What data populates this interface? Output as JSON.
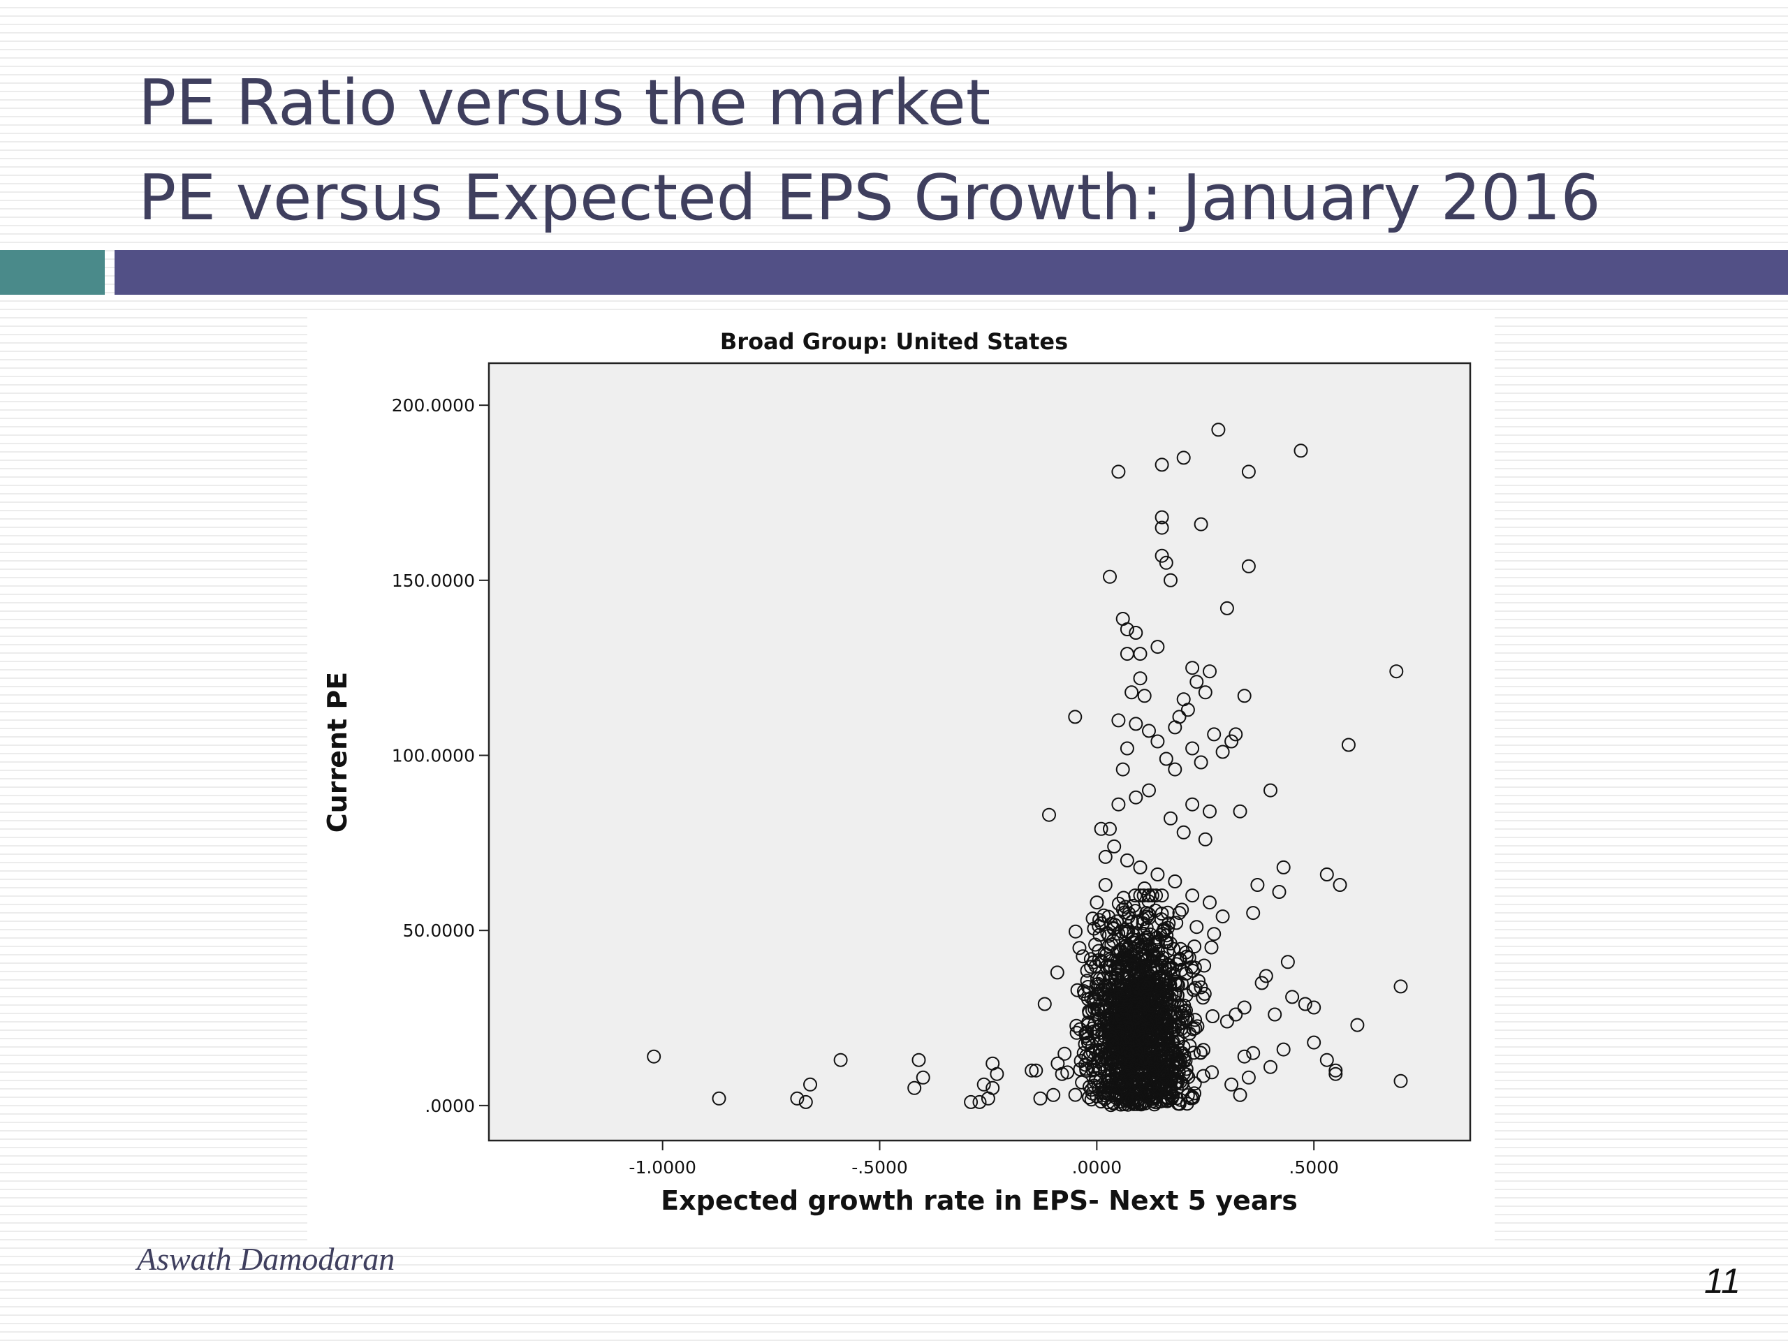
{
  "slide": {
    "title_line1": "PE Ratio versus the market",
    "title_line2": "PE versus Expected EPS Growth: January 2016",
    "author": "Aswath Damodaran",
    "page_number": "11"
  },
  "colors": {
    "title_text": "#3f3f5e",
    "accent_teal": "#4a8a8a",
    "accent_purple": "#525086",
    "plot_background": "#efefef",
    "marker": "#111111"
  },
  "chart_data": {
    "type": "scatter",
    "title": "Broad Group: United States",
    "xlabel": "Expected growth rate in EPS- Next 5 years",
    "ylabel": "Current PE",
    "xlim": [
      -1.4,
      0.86
    ],
    "ylim": [
      -10,
      212
    ],
    "x_ticks": [
      {
        "value": -1.0,
        "label": "-1.0000"
      },
      {
        "value": -0.5,
        "label": "-.5000"
      },
      {
        "value": 0.0,
        "label": ".0000"
      },
      {
        "value": 0.5,
        "label": ".5000"
      }
    ],
    "y_ticks": [
      {
        "value": 0,
        "label": ".0000"
      },
      {
        "value": 50,
        "label": "50.0000"
      },
      {
        "value": 100,
        "label": "100.0000"
      },
      {
        "value": 150,
        "label": "150.0000"
      },
      {
        "value": 200,
        "label": "200.0000"
      }
    ],
    "grid": false,
    "marker": "open-circle",
    "points": [
      [
        -1.02,
        14
      ],
      [
        -0.87,
        2
      ],
      [
        -0.69,
        2
      ],
      [
        -0.67,
        1
      ],
      [
        -0.66,
        6
      ],
      [
        -0.59,
        13
      ],
      [
        -0.41,
        13
      ],
      [
        -0.4,
        8
      ],
      [
        -0.42,
        5
      ],
      [
        -0.29,
        1
      ],
      [
        -0.27,
        1
      ],
      [
        -0.26,
        6
      ],
      [
        -0.25,
        2
      ],
      [
        -0.24,
        5
      ],
      [
        -0.24,
        12
      ],
      [
        -0.23,
        9
      ],
      [
        -0.15,
        10
      ],
      [
        -0.14,
        10
      ],
      [
        -0.13,
        2
      ],
      [
        -0.12,
        29
      ],
      [
        -0.11,
        83
      ],
      [
        -0.1,
        3
      ],
      [
        -0.09,
        12
      ],
      [
        -0.08,
        9
      ],
      [
        -0.05,
        111
      ],
      [
        -0.04,
        45
      ],
      [
        -0.03,
        15
      ],
      [
        -0.02,
        18
      ],
      [
        -0.01,
        22
      ],
      [
        0.03,
        151
      ],
      [
        0.05,
        181
      ],
      [
        0.06,
        139
      ],
      [
        0.07,
        136
      ],
      [
        0.07,
        129
      ],
      [
        0.09,
        135
      ],
      [
        0.1,
        129
      ],
      [
        0.14,
        131
      ],
      [
        0.15,
        168
      ],
      [
        0.15,
        165
      ],
      [
        0.15,
        157
      ],
      [
        0.15,
        183
      ],
      [
        0.16,
        155
      ],
      [
        0.17,
        150
      ],
      [
        0.2,
        185
      ],
      [
        0.24,
        166
      ],
      [
        0.28,
        193
      ],
      [
        0.3,
        142
      ],
      [
        0.35,
        181
      ],
      [
        0.35,
        154
      ],
      [
        0.47,
        187
      ],
      [
        0.34,
        117
      ],
      [
        0.32,
        106
      ],
      [
        0.29,
        101
      ],
      [
        0.31,
        104
      ],
      [
        0.4,
        90
      ],
      [
        0.33,
        84
      ],
      [
        0.58,
        103
      ],
      [
        0.69,
        124
      ],
      [
        0.7,
        34
      ],
      [
        0.7,
        7
      ],
      [
        0.6,
        23
      ],
      [
        0.53,
        66
      ],
      [
        0.56,
        63
      ],
      [
        0.43,
        68
      ],
      [
        0.42,
        61
      ],
      [
        0.37,
        63
      ],
      [
        0.36,
        55
      ],
      [
        0.44,
        41
      ],
      [
        0.39,
        37
      ],
      [
        0.38,
        35
      ],
      [
        0.45,
        31
      ],
      [
        0.48,
        29
      ],
      [
        0.5,
        28
      ],
      [
        0.41,
        26
      ],
      [
        0.4,
        11
      ],
      [
        0.43,
        16
      ],
      [
        0.5,
        18
      ],
      [
        0.53,
        13
      ],
      [
        0.55,
        10
      ],
      [
        0.55,
        9
      ],
      [
        0.36,
        15
      ],
      [
        0.34,
        28
      ],
      [
        0.32,
        26
      ],
      [
        0.3,
        24
      ],
      [
        0.33,
        3
      ],
      [
        0.31,
        6
      ],
      [
        0.34,
        14
      ],
      [
        0.35,
        8
      ],
      [
        0.22,
        125
      ],
      [
        0.23,
        121
      ],
      [
        0.25,
        118
      ],
      [
        0.26,
        124
      ],
      [
        0.21,
        113
      ],
      [
        0.19,
        111
      ],
      [
        0.18,
        108
      ],
      [
        0.2,
        116
      ],
      [
        0.22,
        102
      ],
      [
        0.24,
        98
      ],
      [
        0.27,
        106
      ],
      [
        0.1,
        122
      ],
      [
        0.08,
        118
      ],
      [
        0.11,
        117
      ],
      [
        0.05,
        110
      ],
      [
        0.09,
        109
      ],
      [
        0.12,
        107
      ],
      [
        0.14,
        104
      ],
      [
        0.16,
        99
      ],
      [
        0.07,
        102
      ],
      [
        0.06,
        96
      ],
      [
        0.18,
        96
      ],
      [
        0.22,
        86
      ],
      [
        0.26,
        84
      ],
      [
        0.25,
        76
      ],
      [
        0.2,
        78
      ],
      [
        0.17,
        82
      ],
      [
        0.12,
        90
      ],
      [
        0.09,
        88
      ],
      [
        0.05,
        86
      ],
      [
        0.03,
        79
      ],
      [
        0.01,
        79
      ],
      [
        0.02,
        71
      ],
      [
        0.04,
        74
      ],
      [
        0.07,
        70
      ],
      [
        0.1,
        68
      ],
      [
        0.14,
        66
      ],
      [
        0.18,
        64
      ],
      [
        0.22,
        60
      ],
      [
        0.26,
        58
      ],
      [
        0.29,
        54
      ],
      [
        0.27,
        49
      ],
      [
        0.02,
        63
      ],
      [
        0.0,
        58
      ],
      [
        0.06,
        56
      ],
      [
        0.11,
        62
      ],
      [
        0.15,
        60
      ],
      [
        0.19,
        55
      ],
      [
        0.23,
        51
      ]
    ],
    "dense_cluster": {
      "x_range": [
        -0.15,
        0.34
      ],
      "x_center": 0.1,
      "y_range": [
        0,
        60
      ],
      "y_center": 22,
      "approx_count": 1300
    }
  }
}
